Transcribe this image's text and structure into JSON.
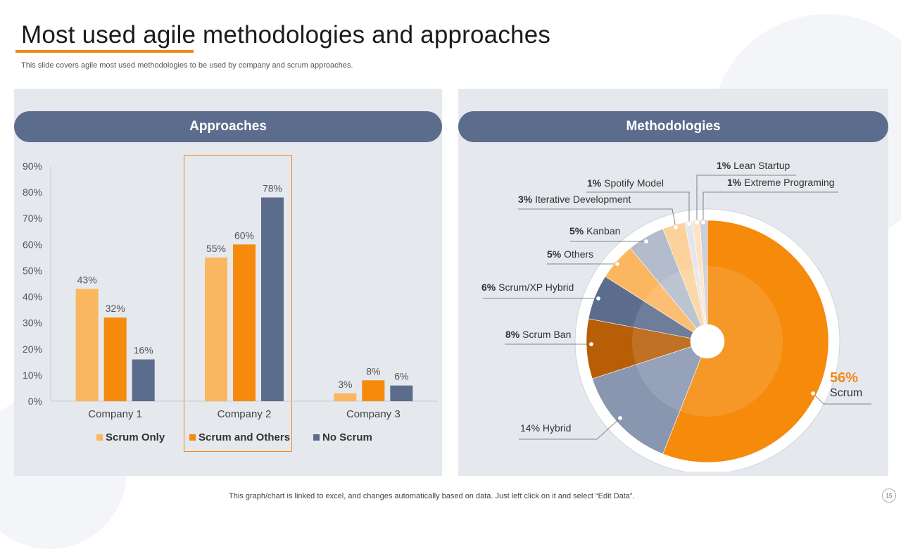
{
  "slide": {
    "title": "Most used agile methodologies and approaches",
    "subtitle": "This slide covers agile most used methodologies to be used by company and scrum approaches.",
    "footer": "This graph/chart is linked to excel,  and changes automatically based on data. Just left click on it and select “Edit Data”.",
    "page_number": "15"
  },
  "panels": {
    "left_header": "Approaches",
    "right_header": "Methodologies"
  },
  "colors": {
    "scrum_only": "#fbb660",
    "scrum_and_others": "#f58a0b",
    "no_scrum": "#5b6c8c",
    "accent": "#f28a1a"
  },
  "chart_data": [
    {
      "type": "bar",
      "title": "Approaches",
      "categories": [
        "Company 1",
        "Company 2",
        "Company 3"
      ],
      "series": [
        {
          "name": "Scrum Only",
          "values": [
            43,
            55,
            3
          ],
          "color": "#fbb660"
        },
        {
          "name": "Scrum and Others",
          "values": [
            32,
            60,
            8
          ],
          "color": "#f58a0b"
        },
        {
          "name": "No Scrum",
          "values": [
            16,
            78,
            6
          ],
          "color": "#5b6c8c"
        }
      ],
      "ylim": [
        0,
        90
      ],
      "yticks": [
        "0%",
        "10%",
        "20%",
        "30%",
        "40%",
        "50%",
        "60%",
        "70%",
        "80%",
        "90%"
      ],
      "highlight_category": "Company 2",
      "legend": "bottom"
    },
    {
      "type": "pie",
      "title": "Methodologies",
      "slices": [
        {
          "label": "Scrum",
          "value": 56,
          "display": "56%",
          "color": "#f58a0b"
        },
        {
          "label": "Hybrid",
          "value": 14,
          "display": "14%",
          "color": "#8896b0"
        },
        {
          "label": "Scrum Ban",
          "value": 8,
          "display": "8%",
          "color": "#b75e07"
        },
        {
          "label": "Scrum/XP Hybrid",
          "value": 6,
          "display": "6%",
          "color": "#5b6c8c"
        },
        {
          "label": "Others",
          "value": 5,
          "display": "5%",
          "color": "#fbb660"
        },
        {
          "label": "Kanban",
          "value": 5,
          "display": "5%",
          "color": "#b3bccc"
        },
        {
          "label": "Iterative  Development",
          "value": 3,
          "display": "3%",
          "color": "#fcd29c"
        },
        {
          "label": "Spotify Model",
          "value": 1,
          "display": "1%",
          "color": "#e3e6ec"
        },
        {
          "label": "Lean Startup",
          "value": 1,
          "display": "1%",
          "color": "#fde3c2"
        },
        {
          "label": "Extreme Programing",
          "value": 1,
          "display": "1%",
          "color": "#c9cfdb"
        }
      ]
    }
  ]
}
